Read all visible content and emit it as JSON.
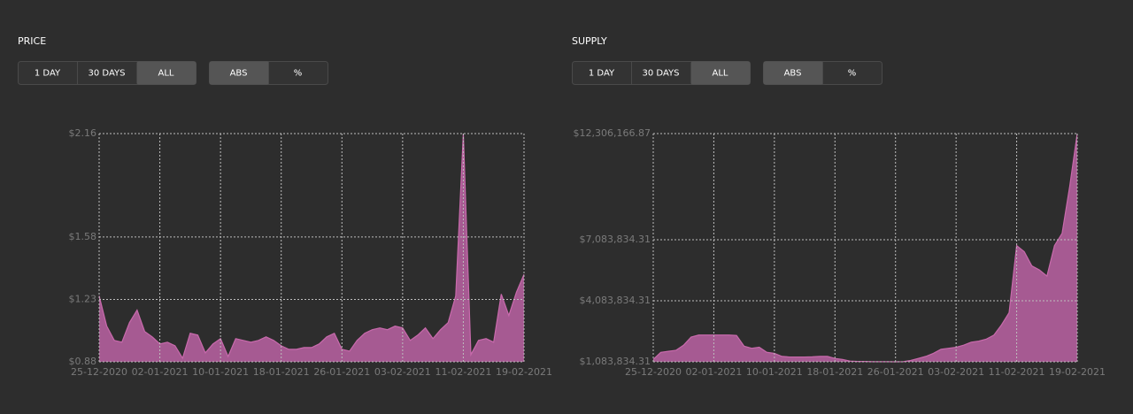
{
  "controls": [
    {
      "range_buttons": [
        "1 DAY",
        "30 DAYS",
        "ALL"
      ],
      "active_range": 2,
      "mode_buttons": [
        "ABS",
        "%"
      ],
      "active_mode": 0
    },
    {
      "range_buttons": [
        "1 DAY",
        "30 DAYS",
        "ALL"
      ],
      "active_range": 2,
      "mode_buttons": [
        "ABS",
        "%"
      ],
      "active_mode": 0
    }
  ],
  "chart_data": [
    {
      "type": "area",
      "title": "PRICE",
      "color": "#a65a92",
      "line_color": "#c86aac",
      "grid": true,
      "x": [
        "25-12-2020",
        "26-12-2020",
        "27-12-2020",
        "28-12-2020",
        "29-12-2020",
        "30-12-2020",
        "31-12-2020",
        "01-01-2021",
        "02-01-2021",
        "03-01-2021",
        "04-01-2021",
        "05-01-2021",
        "06-01-2021",
        "07-01-2021",
        "08-01-2021",
        "09-01-2021",
        "10-01-2021",
        "11-01-2021",
        "12-01-2021",
        "13-01-2021",
        "14-01-2021",
        "15-01-2021",
        "16-01-2021",
        "17-01-2021",
        "18-01-2021",
        "19-01-2021",
        "20-01-2021",
        "21-01-2021",
        "22-01-2021",
        "23-01-2021",
        "24-01-2021",
        "25-01-2021",
        "26-01-2021",
        "27-01-2021",
        "28-01-2021",
        "29-01-2021",
        "30-01-2021",
        "31-01-2021",
        "01-02-2021",
        "02-02-2021",
        "03-02-2021",
        "04-02-2021",
        "05-02-2021",
        "06-02-2021",
        "07-02-2021",
        "08-02-2021",
        "09-02-2021",
        "10-02-2021",
        "11-02-2021",
        "12-02-2021",
        "13-02-2021",
        "14-02-2021",
        "15-02-2021",
        "16-02-2021",
        "17-02-2021",
        "18-02-2021",
        "19-02-2021"
      ],
      "values": [
        1.25,
        1.08,
        1.0,
        0.99,
        1.1,
        1.17,
        1.05,
        1.02,
        0.98,
        0.99,
        0.97,
        0.9,
        1.04,
        1.03,
        0.93,
        0.98,
        1.01,
        0.91,
        1.01,
        1.0,
        0.99,
        1.0,
        1.02,
        1.0,
        0.97,
        0.95,
        0.95,
        0.96,
        0.96,
        0.98,
        1.02,
        1.04,
        0.95,
        0.94,
        1.0,
        1.04,
        1.06,
        1.07,
        1.06,
        1.08,
        1.07,
        1.0,
        1.03,
        1.07,
        1.01,
        1.06,
        1.1,
        1.25,
        2.16,
        0.92,
        1.0,
        1.01,
        0.99,
        1.26,
        1.14,
        1.27,
        1.37
      ],
      "xlim": [
        "25-12-2020",
        "19-02-2021"
      ],
      "xticks": [
        "25-12-2020",
        "02-01-2021",
        "10-01-2021",
        "18-01-2021",
        "26-01-2021",
        "03-02-2021",
        "11-02-2021",
        "19-02-2021"
      ],
      "ylim": [
        0.88,
        2.16
      ],
      "yticks": [
        {
          "value": 0.88,
          "label": "$0.88"
        },
        {
          "value": 1.23,
          "label": "$1.23"
        },
        {
          "value": 1.58,
          "label": "$1.58"
        },
        {
          "value": 2.16,
          "label": "$2.16"
        }
      ]
    },
    {
      "type": "area",
      "title": "SUPPLY",
      "color": "#a65a92",
      "line_color": "#c86aac",
      "grid": true,
      "x": [
        "25-12-2020",
        "26-12-2020",
        "27-12-2020",
        "28-12-2020",
        "29-12-2020",
        "30-12-2020",
        "31-12-2020",
        "01-01-2021",
        "02-01-2021",
        "03-01-2021",
        "04-01-2021",
        "05-01-2021",
        "06-01-2021",
        "07-01-2021",
        "08-01-2021",
        "09-01-2021",
        "10-01-2021",
        "11-01-2021",
        "12-01-2021",
        "13-01-2021",
        "14-01-2021",
        "15-01-2021",
        "16-01-2021",
        "17-01-2021",
        "18-01-2021",
        "19-01-2021",
        "20-01-2021",
        "21-01-2021",
        "22-01-2021",
        "23-01-2021",
        "24-01-2021",
        "25-01-2021",
        "26-01-2021",
        "27-01-2021",
        "28-01-2021",
        "29-01-2021",
        "30-01-2021",
        "31-01-2021",
        "01-02-2021",
        "02-02-2021",
        "03-02-2021",
        "04-02-2021",
        "05-02-2021",
        "06-02-2021",
        "07-02-2021",
        "08-02-2021",
        "09-02-2021",
        "10-02-2021",
        "11-02-2021",
        "12-02-2021",
        "13-02-2021",
        "14-02-2021",
        "15-02-2021",
        "16-02-2021",
        "17-02-2021",
        "18-02-2021",
        "19-02-2021"
      ],
      "values": [
        1200000,
        1550000,
        1600000,
        1650000,
        1900000,
        2300000,
        2400000,
        2400000,
        2400000,
        2400000,
        2400000,
        2380000,
        1850000,
        1750000,
        1800000,
        1550000,
        1500000,
        1350000,
        1320000,
        1320000,
        1320000,
        1330000,
        1350000,
        1350000,
        1250000,
        1200000,
        1120000,
        1100000,
        1100000,
        1090000,
        1090000,
        1090000,
        1085000,
        1090000,
        1150000,
        1250000,
        1350000,
        1500000,
        1700000,
        1750000,
        1800000,
        1900000,
        2050000,
        2100000,
        2200000,
        2400000,
        2900000,
        3500000,
        6800000,
        6500000,
        5800000,
        5600000,
        5300000,
        6800000,
        7400000,
        9700000,
        12306166.87
      ],
      "xlim": [
        "25-12-2020",
        "19-02-2021"
      ],
      "xticks": [
        "25-12-2020",
        "02-01-2021",
        "10-01-2021",
        "18-01-2021",
        "26-01-2021",
        "03-02-2021",
        "11-02-2021",
        "19-02-2021"
      ],
      "ylim": [
        1083834.31,
        12306166.87
      ],
      "yticks": [
        {
          "value": 1083834.31,
          "label": "$1,083,834.31"
        },
        {
          "value": 4083834.31,
          "label": "$4,083,834.31"
        },
        {
          "value": 7083834.31,
          "label": "$7,083,834.31"
        },
        {
          "value": 12306166.87,
          "label": "$12,306,166.87"
        }
      ]
    }
  ]
}
